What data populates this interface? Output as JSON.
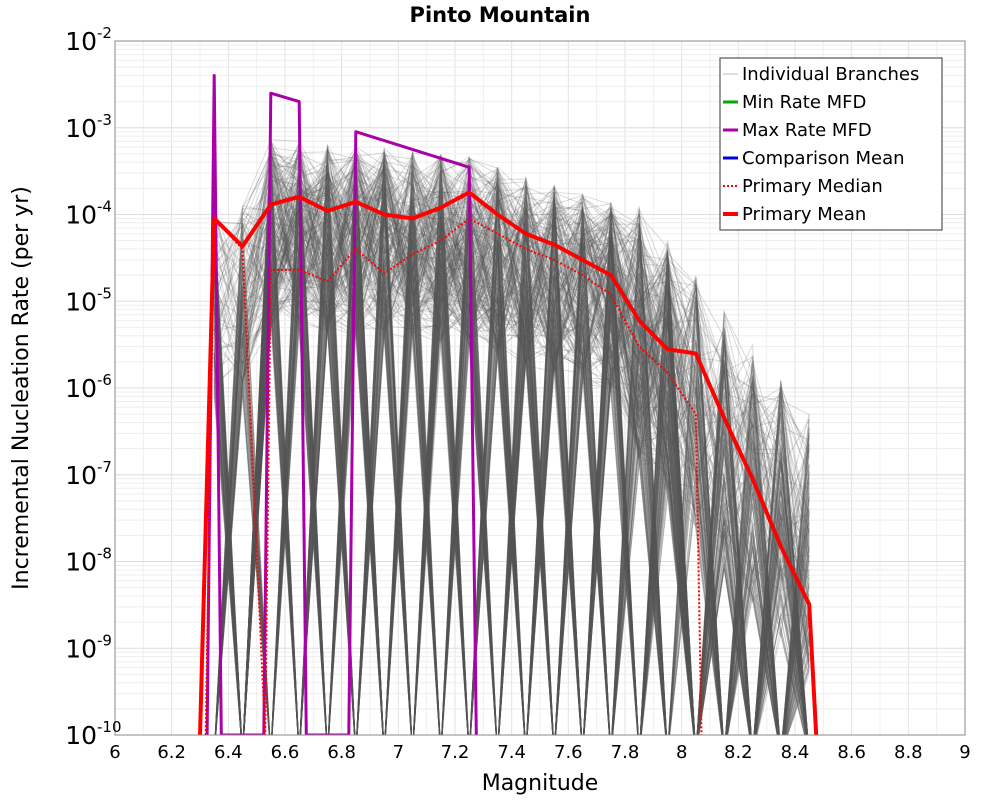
{
  "chart_data": {
    "type": "line",
    "title": "Pinto Mountain",
    "xlabel": "Magnitude",
    "ylabel": "Incremental Nucleation Rate (per yr)",
    "xlim": [
      6,
      9
    ],
    "ylim": [
      1e-10,
      0.01
    ],
    "y_scale": "log",
    "grid": true,
    "legend_position": "top-right",
    "x_ticks": [
      "6",
      "6.2",
      "6.4",
      "6.6",
      "6.8",
      "7",
      "7.2",
      "7.4",
      "7.6",
      "7.8",
      "8",
      "8.2",
      "8.4",
      "8.6",
      "8.8",
      "9"
    ],
    "y_ticks": [
      {
        "base": "10",
        "exp": "-10"
      },
      {
        "base": "10",
        "exp": "-9"
      },
      {
        "base": "10",
        "exp": "-8"
      },
      {
        "base": "10",
        "exp": "-7"
      },
      {
        "base": "10",
        "exp": "-6"
      },
      {
        "base": "10",
        "exp": "-5"
      },
      {
        "base": "10",
        "exp": "-4"
      },
      {
        "base": "10",
        "exp": "-3"
      },
      {
        "base": "10",
        "exp": "-2"
      }
    ],
    "legend": [
      {
        "label": "Individual Branches",
        "color": "#bbbbbb",
        "style": "thin"
      },
      {
        "label": "Min Rate MFD",
        "color": "#00aa00",
        "style": "solid"
      },
      {
        "label": "Max Rate MFD",
        "color": "#aa00aa",
        "style": "solid"
      },
      {
        "label": "Comparison Mean",
        "color": "#0000dd",
        "style": "solid"
      },
      {
        "label": " Primary Median",
        "color": "#ff0000",
        "style": "dotted"
      },
      {
        "label": "Primary Mean",
        "color": "#ff0000",
        "style": "thick"
      }
    ],
    "series": [
      {
        "name": "Max Rate MFD",
        "color": "#aa00aa",
        "points": [
          [
            6.325,
            1e-10
          ],
          [
            6.35,
            0.004
          ],
          [
            6.375,
            1e-10
          ],
          [
            6.525,
            1e-10
          ],
          [
            6.55,
            0.0025
          ],
          [
            6.65,
            0.002
          ],
          [
            6.675,
            1e-10
          ],
          [
            6.825,
            1e-10
          ],
          [
            6.85,
            0.0009
          ],
          [
            7.25,
            0.00035
          ],
          [
            7.275,
            1e-10
          ]
        ]
      },
      {
        "name": "Primary Median",
        "color": "#ff0000",
        "points": [
          [
            6.32,
            1e-10
          ],
          [
            6.35,
            9e-05
          ],
          [
            6.45,
            4e-05
          ],
          [
            6.53,
            1e-10
          ],
          [
            6.55,
            2.3e-05
          ],
          [
            6.65,
            2.3e-05
          ],
          [
            6.75,
            1.7e-05
          ],
          [
            6.85,
            4e-05
          ],
          [
            6.95,
            2.1e-05
          ],
          [
            7.05,
            3.5e-05
          ],
          [
            7.15,
            5e-05
          ],
          [
            7.25,
            9e-05
          ],
          [
            7.35,
            6e-05
          ],
          [
            7.45,
            4e-05
          ],
          [
            7.55,
            3e-05
          ],
          [
            7.65,
            2e-05
          ],
          [
            7.75,
            1.2e-05
          ],
          [
            7.85,
            3e-06
          ],
          [
            7.95,
            1.5e-06
          ],
          [
            8.05,
            5e-07
          ],
          [
            8.07,
            1e-10
          ]
        ]
      },
      {
        "name": "Primary Mean",
        "color": "#ff0000",
        "points": [
          [
            6.3,
            1e-10
          ],
          [
            6.35,
            9e-05
          ],
          [
            6.45,
            4.3e-05
          ],
          [
            6.55,
            0.00013
          ],
          [
            6.65,
            0.00016
          ],
          [
            6.75,
            0.00011
          ],
          [
            6.85,
            0.00014
          ],
          [
            6.95,
            0.0001
          ],
          [
            7.05,
            9e-05
          ],
          [
            7.15,
            0.00012
          ],
          [
            7.25,
            0.00018
          ],
          [
            7.35,
            0.0001
          ],
          [
            7.45,
            6e-05
          ],
          [
            7.55,
            4.5e-05
          ],
          [
            7.65,
            3e-05
          ],
          [
            7.75,
            2e-05
          ],
          [
            7.85,
            6e-06
          ],
          [
            7.95,
            2.8e-06
          ],
          [
            8.05,
            2.5e-06
          ],
          [
            8.15,
            4.5e-07
          ],
          [
            8.25,
            9e-08
          ],
          [
            8.35,
            1.5e-08
          ],
          [
            8.45,
            3.2e-09
          ],
          [
            8.475,
            1e-10
          ]
        ]
      }
    ]
  }
}
